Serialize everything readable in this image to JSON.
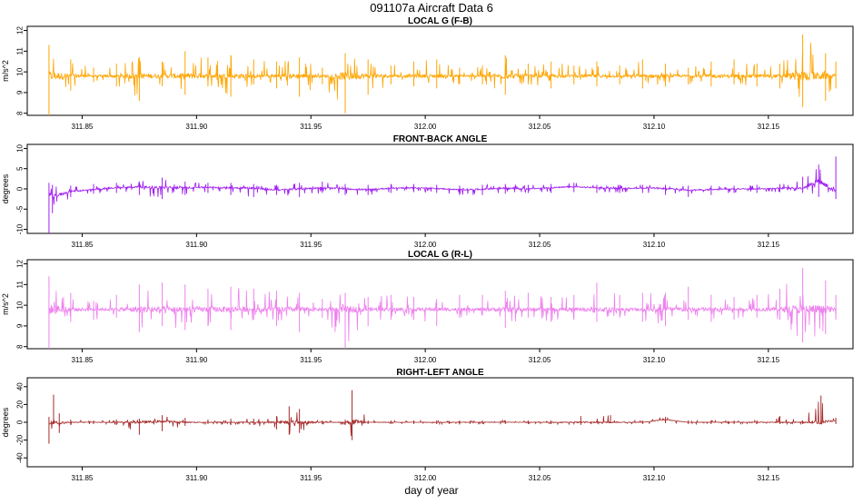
{
  "figure": {
    "title": "091107a   Aircraft Data 6",
    "xlabel": "day of year"
  },
  "chart_data": [
    {
      "type": "line",
      "title": "LOCAL G (F-B)",
      "ylabel": "m/s^2",
      "color": "#ffa500",
      "xlim": [
        311.826,
        312.187
      ],
      "ylim": [
        7.9,
        12.2
      ],
      "xticks": [
        311.85,
        311.9,
        311.95,
        312.0,
        312.05,
        312.1,
        312.15
      ],
      "xtick_labels": [
        "311.85",
        "311.90",
        "311.95",
        "312.00",
        "312.05",
        "312.10",
        "312.15"
      ],
      "yticks": [
        8,
        9,
        10,
        11,
        12
      ],
      "ytick_labels": [
        "8",
        "9",
        "10",
        "11",
        "12"
      ],
      "series": [
        {
          "x": [
            311.8355,
            311.845,
            311.855,
            311.865,
            311.875,
            311.885,
            311.895,
            311.905,
            311.915,
            311.925,
            311.935,
            311.945,
            311.955,
            311.965,
            311.975,
            311.985,
            311.995,
            312.005,
            312.015,
            312.025,
            312.035,
            312.045,
            312.055,
            312.065,
            312.075,
            312.085,
            312.095,
            312.105,
            312.115,
            312.125,
            312.135,
            312.145,
            312.155,
            312.165,
            312.175,
            312.1795
          ],
          "y": [
            9.8,
            9.8,
            9.8,
            9.8,
            9.8,
            9.8,
            9.8,
            9.8,
            9.8,
            9.8,
            9.8,
            9.8,
            9.8,
            9.8,
            9.8,
            9.8,
            9.8,
            9.8,
            9.8,
            9.8,
            9.8,
            9.8,
            9.8,
            9.8,
            9.8,
            9.8,
            9.8,
            9.8,
            9.8,
            9.8,
            9.8,
            9.8,
            9.8,
            9.8,
            9.8,
            9.8
          ],
          "y_min": [
            7.9,
            9.1,
            9.5,
            9.3,
            8.6,
            9.3,
            8.9,
            9.3,
            8.8,
            9.4,
            9.2,
            8.8,
            9.4,
            8.0,
            8.9,
            9.4,
            9.3,
            9.2,
            9.4,
            9.4,
            8.9,
            9.4,
            9.2,
            9.4,
            9.3,
            9.4,
            9.2,
            9.3,
            9.4,
            9.3,
            9.4,
            9.3,
            9.2,
            8.3,
            8.6,
            9.2
          ],
          "y_max": [
            11.3,
            10.6,
            10.2,
            10.4,
            10.7,
            10.5,
            11.0,
            10.7,
            10.8,
            10.6,
            10.5,
            10.7,
            10.2,
            10.9,
            10.6,
            10.3,
            10.5,
            10.6,
            10.2,
            10.3,
            10.8,
            10.4,
            10.5,
            10.3,
            10.5,
            10.3,
            10.6,
            10.4,
            10.2,
            10.5,
            10.6,
            10.4,
            10.4,
            11.8,
            10.9,
            10.5
          ]
        }
      ]
    },
    {
      "type": "line",
      "title": "FRONT-BACK ANGLE",
      "ylabel": "degrees",
      "color": "#a020f0",
      "xlim": [
        311.826,
        312.187
      ],
      "ylim": [
        -11,
        11
      ],
      "xticks": [
        311.85,
        311.9,
        311.95,
        312.0,
        312.05,
        312.1,
        312.15
      ],
      "xtick_labels": [
        "311.85",
        "311.90",
        "311.95",
        "312.00",
        "312.05",
        "312.10",
        "312.15"
      ],
      "yticks": [
        -10,
        -5,
        0,
        5,
        10
      ],
      "ytick_labels": [
        "-10",
        "-5",
        "0",
        "5",
        "10"
      ],
      "series": [
        {
          "x": [
            311.8355,
            311.837,
            311.845,
            311.855,
            311.865,
            311.875,
            311.885,
            311.895,
            311.905,
            311.915,
            311.925,
            311.935,
            311.945,
            311.955,
            311.965,
            311.975,
            311.985,
            311.995,
            312.005,
            312.015,
            312.025,
            312.035,
            312.045,
            312.055,
            312.065,
            312.075,
            312.085,
            312.095,
            312.105,
            312.115,
            312.125,
            312.135,
            312.145,
            312.155,
            312.165,
            312.172,
            312.1795
          ],
          "y": [
            -1.0,
            -2.0,
            -0.6,
            -0.2,
            0.3,
            0.5,
            0.3,
            0.3,
            0.4,
            0.3,
            0.2,
            -0.3,
            0.0,
            0.3,
            0.0,
            -0.2,
            0.2,
            0.3,
            0.1,
            -0.2,
            -0.1,
            0.2,
            0.0,
            0.3,
            0.5,
            0.3,
            0.1,
            0.2,
            0.1,
            -0.3,
            -0.2,
            0.0,
            0.0,
            0.2,
            0.2,
            2.0,
            -0.5
          ],
          "y_min": [
            -11.0,
            -6.0,
            -2.0,
            -1.2,
            -1.0,
            -1.5,
            -2.5,
            -1.5,
            -1.0,
            -1.5,
            -2.0,
            -1.5,
            -2.0,
            -1.0,
            -1.5,
            -1.5,
            -1.0,
            -0.8,
            -1.0,
            -1.5,
            -1.5,
            -1.2,
            -1.0,
            -1.0,
            -0.8,
            -1.0,
            -1.0,
            -1.0,
            -1.5,
            -2.0,
            -1.5,
            -1.0,
            -1.0,
            -0.8,
            -1.0,
            -2.0,
            -2.5
          ],
          "y_max": [
            1.5,
            1.0,
            0.8,
            1.2,
            1.5,
            1.8,
            2.8,
            1.8,
            1.5,
            1.5,
            1.2,
            1.0,
            1.5,
            1.8,
            1.2,
            1.0,
            1.2,
            1.2,
            1.0,
            0.8,
            1.0,
            1.2,
            1.0,
            1.2,
            1.5,
            1.0,
            1.0,
            1.0,
            1.0,
            0.8,
            0.8,
            0.8,
            1.0,
            1.2,
            3.0,
            6.0,
            8.0
          ]
        }
      ]
    },
    {
      "type": "line",
      "title": "LOCAL G (R-L)",
      "ylabel": "m/s^2",
      "color": "#ee82ee",
      "xlim": [
        311.826,
        312.187
      ],
      "ylim": [
        7.9,
        12.2
      ],
      "xticks": [
        311.85,
        311.9,
        311.95,
        312.0,
        312.05,
        312.1,
        312.15
      ],
      "xtick_labels": [
        "311.85",
        "311.90",
        "311.95",
        "312.00",
        "312.05",
        "312.10",
        "312.15"
      ],
      "yticks": [
        8,
        9,
        10,
        11,
        12
      ],
      "ytick_labels": [
        "8",
        "9",
        "10",
        "11",
        "12"
      ],
      "series": [
        {
          "x": [
            311.8355,
            311.845,
            311.855,
            311.865,
            311.875,
            311.885,
            311.895,
            311.905,
            311.915,
            311.925,
            311.935,
            311.945,
            311.955,
            311.965,
            311.975,
            311.985,
            311.995,
            312.005,
            312.015,
            312.025,
            312.035,
            312.045,
            312.055,
            312.065,
            312.075,
            312.085,
            312.095,
            312.105,
            312.115,
            312.125,
            312.135,
            312.145,
            312.155,
            312.165,
            312.175,
            312.1795
          ],
          "y": [
            9.8,
            9.8,
            9.8,
            9.8,
            9.8,
            9.8,
            9.8,
            9.8,
            9.8,
            9.8,
            9.8,
            9.8,
            9.8,
            9.8,
            9.8,
            9.8,
            9.8,
            9.8,
            9.8,
            9.8,
            9.8,
            9.8,
            9.8,
            9.8,
            9.8,
            9.8,
            9.8,
            9.8,
            9.8,
            9.8,
            9.8,
            9.8,
            9.8,
            9.8,
            9.8,
            9.8
          ],
          "y_min": [
            7.9,
            9.2,
            9.3,
            9.4,
            8.7,
            9.0,
            8.8,
            9.0,
            8.8,
            9.3,
            9.0,
            8.7,
            9.4,
            7.9,
            9.0,
            9.3,
            9.3,
            9.0,
            9.4,
            9.5,
            8.9,
            9.4,
            9.2,
            9.3,
            9.2,
            9.4,
            9.2,
            9.0,
            9.3,
            9.2,
            9.3,
            9.4,
            9.3,
            8.2,
            8.6,
            9.3
          ],
          "y_max": [
            11.4,
            10.6,
            10.2,
            10.5,
            11.0,
            11.1,
            11.0,
            10.8,
            10.9,
            10.8,
            10.7,
            10.6,
            10.3,
            10.6,
            10.4,
            10.5,
            10.4,
            10.3,
            10.5,
            10.5,
            10.7,
            10.6,
            10.4,
            10.5,
            11.1,
            10.5,
            10.6,
            10.6,
            10.9,
            10.5,
            10.4,
            10.5,
            10.8,
            11.8,
            11.2,
            10.5
          ]
        }
      ]
    },
    {
      "type": "line",
      "title": "RIGHT-LEFT ANGLE",
      "ylabel": "degrees",
      "color": "#a52a2a",
      "xlim": [
        311.826,
        312.187
      ],
      "ylim": [
        -50,
        50
      ],
      "xticks": [
        311.85,
        311.9,
        311.95,
        312.0,
        312.05,
        312.1,
        312.15
      ],
      "xtick_labels": [
        "311.85",
        "311.90",
        "311.95",
        "312.00",
        "312.05",
        "312.10",
        "312.15"
      ],
      "yticks": [
        -40,
        -20,
        0,
        20,
        40
      ],
      "ytick_labels": [
        "-40",
        "-20",
        "0",
        "20",
        "40"
      ],
      "series": [
        {
          "x": [
            311.8355,
            311.8375,
            311.84,
            311.845,
            311.855,
            311.865,
            311.875,
            311.885,
            311.895,
            311.905,
            311.915,
            311.925,
            311.935,
            311.9405,
            311.945,
            311.955,
            311.965,
            311.968,
            311.975,
            311.985,
            311.995,
            312.005,
            312.015,
            312.025,
            312.035,
            312.045,
            312.055,
            312.068,
            312.081,
            312.095,
            312.105,
            312.115,
            312.125,
            312.135,
            312.145,
            312.155,
            312.165,
            312.173,
            312.1795
          ],
          "y": [
            0,
            1,
            -1,
            0,
            0,
            0,
            0,
            1,
            0,
            0,
            0,
            0,
            0,
            0,
            0,
            0,
            0,
            0,
            0,
            0,
            0,
            0,
            0,
            0,
            0,
            0,
            0,
            0,
            0,
            0,
            3,
            0,
            0,
            0,
            0,
            0,
            0,
            0,
            2
          ],
          "y_min": [
            -24,
            -2,
            -12,
            -3,
            -2,
            -3,
            -14,
            -10,
            -4,
            -2,
            -3,
            -3,
            -8,
            -14,
            -12,
            -2,
            -3,
            -20,
            -2,
            -2,
            -2,
            -2,
            -2,
            -2,
            -2,
            -2,
            -2,
            -3,
            -1,
            -2,
            -1,
            -2,
            -2,
            -2,
            -2,
            -2,
            -2,
            -2,
            -2
          ],
          "y_max": [
            6,
            31,
            10,
            3,
            2,
            3,
            4,
            8,
            5,
            3,
            4,
            4,
            7,
            18,
            15,
            2,
            3,
            36,
            2,
            2,
            2,
            2,
            2,
            2,
            2,
            2,
            2,
            7,
            8,
            2,
            6,
            2,
            2,
            2,
            2,
            7,
            2,
            30,
            5
          ]
        }
      ]
    }
  ]
}
